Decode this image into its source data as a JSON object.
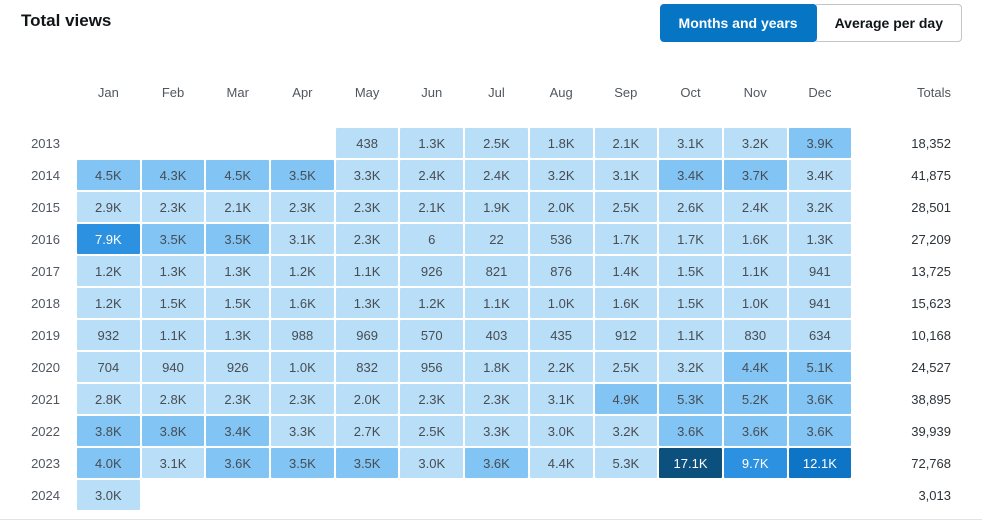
{
  "header": {
    "title": "Total views",
    "buttons": {
      "months_years": "Months and years",
      "average_per_day": "Average per day"
    }
  },
  "colors": {
    "accent_blue": "#0675c4",
    "inactive_button_border": "#c3c4c7",
    "label_gray": "#50575e",
    "cell_text": "#464d54",
    "totals_text": "#2c3338",
    "bottom_border": "#e1e3e6"
  },
  "chart_data": {
    "type": "heatmap",
    "title": "Total views",
    "columns": [
      "Jan",
      "Feb",
      "Mar",
      "Apr",
      "May",
      "Jun",
      "Jul",
      "Aug",
      "Sep",
      "Oct",
      "Nov",
      "Dec"
    ],
    "totals_label": "Totals",
    "palette": {
      "l1": "#b9def8",
      "l2": "#82c4f3",
      "l3": "#2c91e0",
      "l4": "#0d74c6",
      "l5": "#0c507e"
    },
    "rows": [
      {
        "year": "2013",
        "labels": [
          "",
          "",
          "",
          "",
          "438",
          "1.3K",
          "2.5K",
          "1.8K",
          "2.1K",
          "3.1K",
          "3.2K",
          "3.9K"
        ],
        "levels": [
          0,
          0,
          0,
          0,
          1,
          1,
          1,
          1,
          1,
          1,
          1,
          2
        ],
        "numeric": [
          null,
          null,
          null,
          null,
          438,
          1300,
          2500,
          1800,
          2100,
          3100,
          3200,
          3900
        ],
        "total": "18,352",
        "total_numeric": 18352
      },
      {
        "year": "2014",
        "labels": [
          "4.5K",
          "4.3K",
          "4.5K",
          "3.5K",
          "3.3K",
          "2.4K",
          "2.4K",
          "3.2K",
          "3.1K",
          "3.4K",
          "3.7K",
          "3.4K"
        ],
        "levels": [
          2,
          2,
          2,
          2,
          1,
          1,
          1,
          1,
          1,
          2,
          2,
          1
        ],
        "numeric": [
          4500,
          4300,
          4500,
          3500,
          3300,
          2400,
          2400,
          3200,
          3100,
          3400,
          3700,
          3400
        ],
        "total": "41,875",
        "total_numeric": 41875
      },
      {
        "year": "2015",
        "labels": [
          "2.9K",
          "2.3K",
          "2.1K",
          "2.3K",
          "2.3K",
          "2.1K",
          "1.9K",
          "2.0K",
          "2.5K",
          "2.6K",
          "2.4K",
          "3.2K"
        ],
        "levels": [
          1,
          1,
          1,
          1,
          1,
          1,
          1,
          1,
          1,
          1,
          1,
          1
        ],
        "numeric": [
          2900,
          2300,
          2100,
          2300,
          2300,
          2100,
          1900,
          2000,
          2500,
          2600,
          2400,
          3200
        ],
        "total": "28,501",
        "total_numeric": 28501
      },
      {
        "year": "2016",
        "labels": [
          "7.9K",
          "3.5K",
          "3.5K",
          "3.1K",
          "2.3K",
          "6",
          "22",
          "536",
          "1.7K",
          "1.7K",
          "1.6K",
          "1.3K"
        ],
        "levels": [
          3,
          2,
          2,
          1,
          1,
          1,
          1,
          1,
          1,
          1,
          1,
          1
        ],
        "numeric": [
          7900,
          3500,
          3500,
          3100,
          2300,
          6,
          22,
          536,
          1700,
          1700,
          1600,
          1300
        ],
        "total": "27,209",
        "total_numeric": 27209
      },
      {
        "year": "2017",
        "labels": [
          "1.2K",
          "1.3K",
          "1.3K",
          "1.2K",
          "1.1K",
          "926",
          "821",
          "876",
          "1.4K",
          "1.5K",
          "1.1K",
          "941"
        ],
        "levels": [
          1,
          1,
          1,
          1,
          1,
          1,
          1,
          1,
          1,
          1,
          1,
          1
        ],
        "numeric": [
          1200,
          1300,
          1300,
          1200,
          1100,
          926,
          821,
          876,
          1400,
          1500,
          1100,
          941
        ],
        "total": "13,725",
        "total_numeric": 13725
      },
      {
        "year": "2018",
        "labels": [
          "1.2K",
          "1.5K",
          "1.5K",
          "1.6K",
          "1.3K",
          "1.2K",
          "1.1K",
          "1.0K",
          "1.6K",
          "1.5K",
          "1.0K",
          "941"
        ],
        "levels": [
          1,
          1,
          1,
          1,
          1,
          1,
          1,
          1,
          1,
          1,
          1,
          1
        ],
        "numeric": [
          1200,
          1500,
          1500,
          1600,
          1300,
          1200,
          1100,
          1000,
          1600,
          1500,
          1000,
          941
        ],
        "total": "15,623",
        "total_numeric": 15623
      },
      {
        "year": "2019",
        "labels": [
          "932",
          "1.1K",
          "1.3K",
          "988",
          "969",
          "570",
          "403",
          "435",
          "912",
          "1.1K",
          "830",
          "634"
        ],
        "levels": [
          1,
          1,
          1,
          1,
          1,
          1,
          1,
          1,
          1,
          1,
          1,
          1
        ],
        "numeric": [
          932,
          1100,
          1300,
          988,
          969,
          570,
          403,
          435,
          912,
          1100,
          830,
          634
        ],
        "total": "10,168",
        "total_numeric": 10168
      },
      {
        "year": "2020",
        "labels": [
          "704",
          "940",
          "926",
          "1.0K",
          "832",
          "956",
          "1.8K",
          "2.2K",
          "2.5K",
          "3.2K",
          "4.4K",
          "5.1K"
        ],
        "levels": [
          1,
          1,
          1,
          1,
          1,
          1,
          1,
          1,
          1,
          1,
          2,
          2
        ],
        "numeric": [
          704,
          940,
          926,
          1000,
          832,
          956,
          1800,
          2200,
          2500,
          3200,
          4400,
          5100
        ],
        "total": "24,527",
        "total_numeric": 24527
      },
      {
        "year": "2021",
        "labels": [
          "2.8K",
          "2.8K",
          "2.3K",
          "2.3K",
          "2.0K",
          "2.3K",
          "2.3K",
          "3.1K",
          "4.9K",
          "5.3K",
          "5.2K",
          "3.6K"
        ],
        "levels": [
          1,
          1,
          1,
          1,
          1,
          1,
          1,
          1,
          2,
          2,
          2,
          2
        ],
        "numeric": [
          2800,
          2800,
          2300,
          2300,
          2000,
          2300,
          2300,
          3100,
          4900,
          5300,
          5200,
          3600
        ],
        "total": "38,895",
        "total_numeric": 38895
      },
      {
        "year": "2022",
        "labels": [
          "3.8K",
          "3.8K",
          "3.4K",
          "3.3K",
          "2.7K",
          "2.5K",
          "3.3K",
          "3.0K",
          "3.2K",
          "3.6K",
          "3.6K",
          "3.6K"
        ],
        "levels": [
          2,
          2,
          2,
          1,
          1,
          1,
          1,
          1,
          1,
          2,
          2,
          2
        ],
        "numeric": [
          3800,
          3800,
          3400,
          3300,
          2700,
          2500,
          3300,
          3000,
          3200,
          3600,
          3600,
          3600
        ],
        "total": "39,939",
        "total_numeric": 39939
      },
      {
        "year": "2023",
        "labels": [
          "4.0K",
          "3.1K",
          "3.6K",
          "3.5K",
          "3.5K",
          "3.0K",
          "3.6K",
          "4.4K",
          "5.3K",
          "17.1K",
          "9.7K",
          "12.1K"
        ],
        "levels": [
          2,
          1,
          2,
          2,
          2,
          1,
          2,
          1,
          1,
          5,
          3,
          4
        ],
        "numeric": [
          4000,
          3100,
          3600,
          3500,
          3500,
          3000,
          3600,
          4400,
          5300,
          17100,
          9700,
          12100
        ],
        "total": "72,768",
        "total_numeric": 72768
      },
      {
        "year": "2024",
        "labels": [
          "3.0K",
          "",
          "",
          "",
          "",
          "",
          "",
          "",
          "",
          "",
          "",
          ""
        ],
        "levels": [
          1,
          0,
          0,
          0,
          0,
          0,
          0,
          0,
          0,
          0,
          0,
          0
        ],
        "numeric": [
          3013,
          null,
          null,
          null,
          null,
          null,
          null,
          null,
          null,
          null,
          null,
          null
        ],
        "total": "3,013",
        "total_numeric": 3013
      }
    ]
  }
}
